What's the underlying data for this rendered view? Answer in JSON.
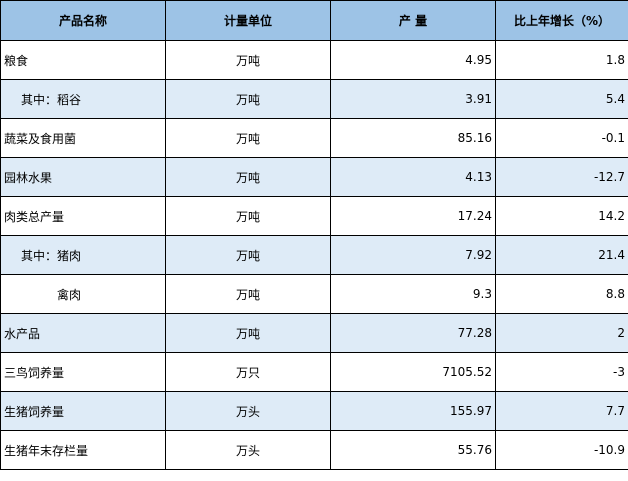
{
  "table": {
    "headers": [
      "产品名称",
      "计量单位",
      "产 量",
      "比上年增长（%）"
    ],
    "rows": [
      {
        "name": "粮食",
        "unit": "万吨",
        "output": "4.95",
        "growth": "1.8"
      },
      {
        "name": "其中：稻谷",
        "unit": "万吨",
        "output": "3.91",
        "growth": "5.4"
      },
      {
        "name": "蔬菜及食用菌",
        "unit": "万吨",
        "output": "85.16",
        "growth": "-0.1"
      },
      {
        "name": "园林水果",
        "unit": "万吨",
        "output": "4.13",
        "growth": "-12.7"
      },
      {
        "name": "肉类总产量",
        "unit": "万吨",
        "output": "17.24",
        "growth": "14.2"
      },
      {
        "name": "其中：猪肉",
        "unit": "万吨",
        "output": "7.92",
        "growth": "21.4"
      },
      {
        "name": "禽肉",
        "unit": "万吨",
        "output": "9.3",
        "growth": "8.8"
      },
      {
        "name": "水产品",
        "unit": "万吨",
        "output": "77.28",
        "growth": "2"
      },
      {
        "name": "三鸟饲养量",
        "unit": "万只",
        "output": "7105.52",
        "growth": "-3"
      },
      {
        "name": "生猪饲养量",
        "unit": "万头",
        "output": "155.97",
        "growth": "7.7"
      },
      {
        "name": "生猪年末存栏量",
        "unit": "万头",
        "output": "55.76",
        "growth": "-10.9"
      }
    ]
  },
  "colors": {
    "header_bg": "#9dc3e6",
    "shaded_row_bg": "#deebf7",
    "border": "#000000"
  }
}
